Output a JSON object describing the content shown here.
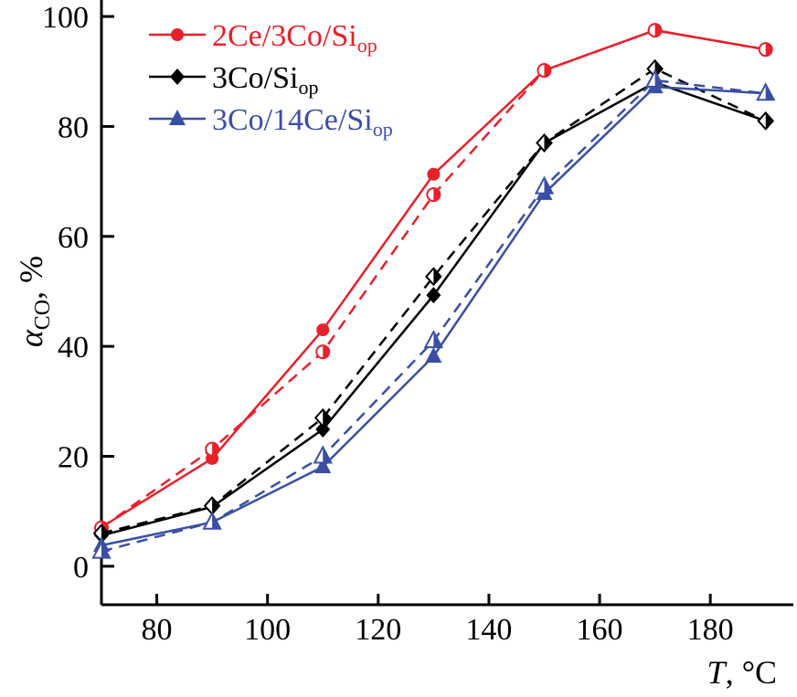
{
  "chart_data": {
    "type": "line",
    "title": "",
    "xlabel": "T, °C",
    "xlabel_italic_part": "T",
    "xlabel_rest": ", °C",
    "ylabel": "αCO, %",
    "ylabel_main": "α",
    "ylabel_sub": "CO",
    "ylabel_rest": ", %",
    "xlim": [
      70,
      195
    ],
    "ylim": [
      -7,
      103
    ],
    "xticks": [
      80,
      100,
      120,
      140,
      160,
      180
    ],
    "yticks": [
      0,
      20,
      40,
      60,
      80,
      100
    ],
    "grid": false,
    "legend_position": "top-left",
    "x": [
      70,
      90,
      110,
      130,
      150,
      170,
      190
    ],
    "series": [
      {
        "name": "2Ce/3Co/Siop",
        "name_main": "2Ce/3Co/Si",
        "name_sub": "op",
        "color": "#e8202a",
        "marker": "filled-circle",
        "line": "solid",
        "values": [
          7.1,
          19.6,
          43,
          71.3,
          90.2,
          97.5,
          94
        ]
      },
      {
        "color": "#e8202a",
        "marker": "half-circle",
        "line": "dashed",
        "values": [
          7,
          21.3,
          39,
          67.6,
          90.2,
          97.5,
          94
        ]
      },
      {
        "name": "3Co/Siop",
        "name_main": "3Co/Si",
        "name_sub": "op",
        "color": "#000000",
        "marker": "filled-diamond",
        "line": "solid",
        "values": [
          5.6,
          10.8,
          24.9,
          49.3,
          77,
          88,
          81
        ]
      },
      {
        "color": "#000000",
        "marker": "half-diamond",
        "line": "dashed",
        "values": [
          6,
          11,
          27,
          52.7,
          77,
          90.5,
          81
        ]
      },
      {
        "name": "3Co/14Ce/Siop",
        "name_main": "3Co/14Ce/Si",
        "name_sub": "op",
        "color": "#3a4fa3",
        "marker": "filled-triangle",
        "line": "solid",
        "values": [
          3.8,
          8,
          18.1,
          38.2,
          67.8,
          87.2,
          86
        ]
      },
      {
        "color": "#3a4fa3",
        "marker": "half-triangle",
        "line": "dashed",
        "values": [
          2.7,
          8,
          20,
          41,
          69,
          88.4,
          86
        ]
      }
    ]
  }
}
